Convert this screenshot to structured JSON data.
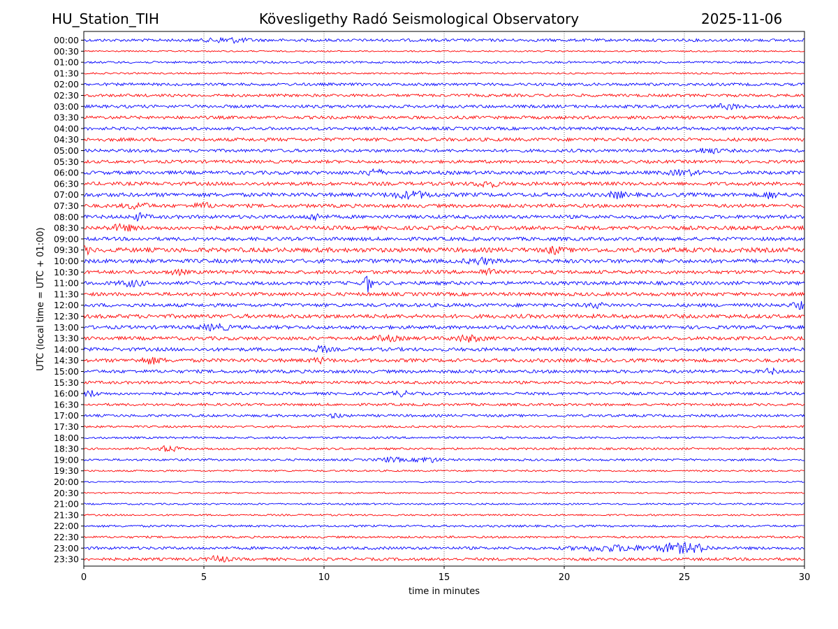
{
  "header": {
    "station": "HU_Station_TIH",
    "observatory": "Kövesligethy Radó Seismological Observatory",
    "date": "2025-11-06"
  },
  "chart_data": {
    "type": "line",
    "title": "Kövesligethy Radó Seismological Observatory",
    "xlabel": "time in minutes",
    "ylabel": "UTC (local time = UTC + 01:00)",
    "xlim": [
      0,
      30
    ],
    "xticks": [
      0,
      5,
      10,
      15,
      20,
      25,
      30
    ],
    "grid_x": [
      5,
      10,
      15,
      20,
      25
    ],
    "colors": {
      "even": "#0000ff",
      "odd": "#ff0000"
    },
    "rows": [
      {
        "label": "00:00",
        "amp": 2,
        "events": [
          {
            "t": 6.0,
            "a": 3,
            "w": 0.8
          }
        ]
      },
      {
        "label": "00:30",
        "amp": 1,
        "events": []
      },
      {
        "label": "01:00",
        "amp": 1.5,
        "events": []
      },
      {
        "label": "01:30",
        "amp": 1.2,
        "events": []
      },
      {
        "label": "02:00",
        "amp": 2,
        "events": []
      },
      {
        "label": "02:30",
        "amp": 2,
        "events": []
      },
      {
        "label": "03:00",
        "amp": 2.2,
        "events": [
          {
            "t": 26.8,
            "a": 3,
            "w": 0.5
          }
        ]
      },
      {
        "label": "03:30",
        "amp": 2.2,
        "events": []
      },
      {
        "label": "04:00",
        "amp": 2.2,
        "events": []
      },
      {
        "label": "04:30",
        "amp": 2.4,
        "events": []
      },
      {
        "label": "05:00",
        "amp": 2.2,
        "events": [
          {
            "t": 26.0,
            "a": 3,
            "w": 0.5
          }
        ]
      },
      {
        "label": "05:30",
        "amp": 2.2,
        "events": []
      },
      {
        "label": "06:00",
        "amp": 2.5,
        "events": [
          {
            "t": 12.1,
            "a": 5,
            "w": 0.3
          },
          {
            "t": 25.0,
            "a": 3,
            "w": 0.6
          }
        ]
      },
      {
        "label": "06:30",
        "amp": 2.5,
        "events": [
          {
            "t": 16.8,
            "a": 3.5,
            "w": 0.5
          }
        ]
      },
      {
        "label": "07:00",
        "amp": 2.8,
        "events": [
          {
            "t": 13.6,
            "a": 4,
            "w": 0.8
          },
          {
            "t": 22.2,
            "a": 4,
            "w": 0.3
          },
          {
            "t": 28.6,
            "a": 4,
            "w": 0.3
          }
        ]
      },
      {
        "label": "07:30",
        "amp": 2.5,
        "events": [
          {
            "t": 2.2,
            "a": 3.5,
            "w": 0.5
          },
          {
            "t": 5.0,
            "a": 3,
            "w": 0.4
          }
        ]
      },
      {
        "label": "08:00",
        "amp": 2.5,
        "events": [
          {
            "t": 2.3,
            "a": 4,
            "w": 0.3
          },
          {
            "t": 9.6,
            "a": 4,
            "w": 0.3
          }
        ]
      },
      {
        "label": "08:30",
        "amp": 2.8,
        "events": [
          {
            "t": 1.6,
            "a": 3.5,
            "w": 0.5
          }
        ]
      },
      {
        "label": "09:00",
        "amp": 2.5,
        "events": []
      },
      {
        "label": "09:30",
        "amp": 3.2,
        "events": [
          {
            "t": 19.6,
            "a": 4,
            "w": 0.3
          },
          {
            "t": 0.1,
            "a": 4,
            "w": 0.2
          }
        ]
      },
      {
        "label": "10:00",
        "amp": 2.8,
        "events": [
          {
            "t": 16.5,
            "a": 3.5,
            "w": 0.5
          }
        ]
      },
      {
        "label": "10:30",
        "amp": 2.5,
        "events": [
          {
            "t": 16.8,
            "a": 4,
            "w": 0.3
          },
          {
            "t": 3.9,
            "a": 3,
            "w": 0.3
          }
        ]
      },
      {
        "label": "11:00",
        "amp": 2.5,
        "events": [
          {
            "t": 11.8,
            "a": 14,
            "w": 0.15
          },
          {
            "t": 2.0,
            "a": 3.5,
            "w": 0.5
          }
        ]
      },
      {
        "label": "11:30",
        "amp": 2.5,
        "events": []
      },
      {
        "label": "12:00",
        "amp": 2.5,
        "events": [
          {
            "t": 29.8,
            "a": 4,
            "w": 0.3
          },
          {
            "t": 21.3,
            "a": 3,
            "w": 0.3
          }
        ]
      },
      {
        "label": "12:30",
        "amp": 2.8,
        "events": []
      },
      {
        "label": "13:00",
        "amp": 2.5,
        "events": [
          {
            "t": 5.5,
            "a": 3.5,
            "w": 0.6
          }
        ]
      },
      {
        "label": "13:30",
        "amp": 2.5,
        "events": [
          {
            "t": 16.0,
            "a": 3.5,
            "w": 0.6
          },
          {
            "t": 12.6,
            "a": 3,
            "w": 0.5
          }
        ]
      },
      {
        "label": "14:00",
        "amp": 2.5,
        "events": [
          {
            "t": 9.9,
            "a": 3.5,
            "w": 0.3
          }
        ]
      },
      {
        "label": "14:30",
        "amp": 2.5,
        "events": [
          {
            "t": 2.8,
            "a": 3.5,
            "w": 0.5
          },
          {
            "t": 9.8,
            "a": 3,
            "w": 0.3
          }
        ]
      },
      {
        "label": "15:00",
        "amp": 2.3,
        "events": [
          {
            "t": 28.6,
            "a": 3,
            "w": 0.3
          }
        ]
      },
      {
        "label": "15:30",
        "amp": 2.0,
        "events": []
      },
      {
        "label": "16:00",
        "amp": 2.0,
        "events": [
          {
            "t": 0.3,
            "a": 3.5,
            "w": 0.3
          },
          {
            "t": 13.2,
            "a": 3,
            "w": 0.4
          }
        ]
      },
      {
        "label": "16:30",
        "amp": 1.8,
        "events": []
      },
      {
        "label": "17:00",
        "amp": 1.8,
        "events": [
          {
            "t": 10.5,
            "a": 2.5,
            "w": 0.3
          }
        ]
      },
      {
        "label": "17:30",
        "amp": 1.5,
        "events": []
      },
      {
        "label": "18:00",
        "amp": 1.5,
        "events": []
      },
      {
        "label": "18:30",
        "amp": 1.5,
        "events": [
          {
            "t": 3.5,
            "a": 3.5,
            "w": 0.5
          }
        ]
      },
      {
        "label": "19:00",
        "amp": 1.5,
        "events": [
          {
            "t": 12.8,
            "a": 3,
            "w": 0.5
          },
          {
            "t": 14.3,
            "a": 3.5,
            "w": 0.5
          }
        ]
      },
      {
        "label": "19:30",
        "amp": 1.2,
        "events": []
      },
      {
        "label": "20:00",
        "amp": 1.0,
        "events": []
      },
      {
        "label": "20:30",
        "amp": 1.0,
        "events": []
      },
      {
        "label": "21:00",
        "amp": 1.2,
        "events": []
      },
      {
        "label": "21:30",
        "amp": 1.2,
        "events": []
      },
      {
        "label": "22:00",
        "amp": 1.5,
        "events": []
      },
      {
        "label": "22:30",
        "amp": 1.5,
        "events": []
      },
      {
        "label": "23:00",
        "amp": 2.0,
        "events": [
          {
            "t": 22.0,
            "a": 3.5,
            "w": 1.5
          },
          {
            "t": 24.5,
            "a": 5.5,
            "w": 0.6
          },
          {
            "t": 25.4,
            "a": 5,
            "w": 0.6
          }
        ]
      },
      {
        "label": "23:30",
        "amp": 2.0,
        "events": [
          {
            "t": 5.6,
            "a": 4,
            "w": 0.4
          }
        ]
      }
    ]
  }
}
